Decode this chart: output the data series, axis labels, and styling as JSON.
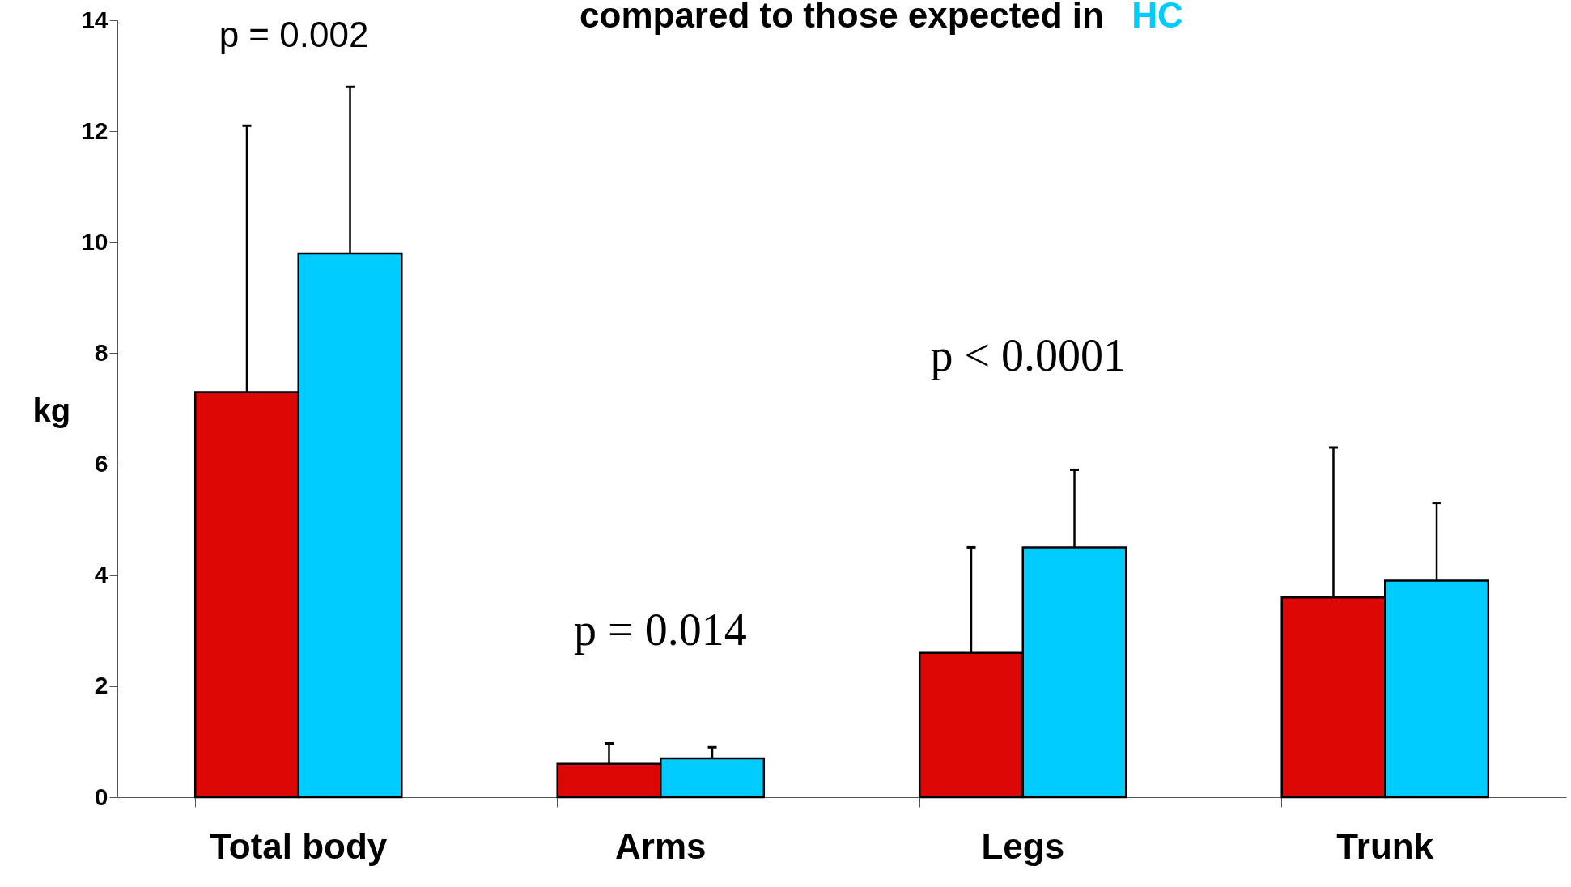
{
  "chart_data": {
    "type": "bar",
    "title": "compared to those expected in",
    "ylabel": "kg",
    "categories": [
      "Total body",
      "Arms",
      "Legs",
      "Trunk"
    ],
    "series": [
      {
        "color": "#dd0806",
        "values": [
          7.3,
          0.6,
          2.6,
          3.6
        ],
        "errors": [
          4.8,
          0.37,
          1.9,
          2.7
        ]
      },
      {
        "color": "#00ccff",
        "values": [
          9.8,
          0.7,
          4.5,
          3.9
        ],
        "errors": [
          3.0,
          0.2,
          1.4,
          1.4
        ]
      }
    ],
    "ylim": [
      0,
      14
    ],
    "yticks": [
      0,
      2,
      4,
      6,
      8,
      10,
      12,
      14
    ],
    "grid": false,
    "annotations": [
      "p = 0.002",
      "p = 0.014",
      "p < 0.0001",
      "HC"
    ]
  }
}
